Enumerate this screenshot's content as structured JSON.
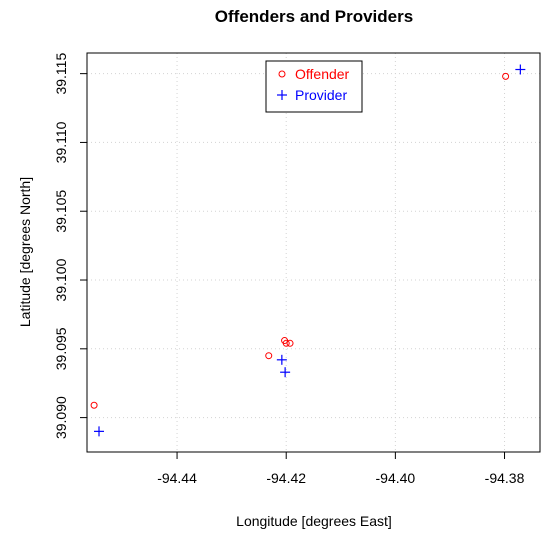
{
  "chart_data": {
    "type": "scatter",
    "title": "Offenders and Providers",
    "xlabel": "Longitude [degrees East]",
    "ylabel": "Latitude [degrees North]",
    "xlim": [
      -94.4565,
      -94.3735
    ],
    "ylim": [
      39.0875,
      39.1165
    ],
    "x_ticks": [
      -94.44,
      -94.42,
      -94.4,
      -94.38
    ],
    "x_tick_labels": [
      "-94.44",
      "-94.42",
      "-94.40",
      "-94.38"
    ],
    "y_ticks": [
      39.09,
      39.095,
      39.1,
      39.105,
      39.11,
      39.115
    ],
    "y_tick_labels": [
      "39.090",
      "39.095",
      "39.100",
      "39.105",
      "39.110",
      "39.115"
    ],
    "grid": true,
    "legend_position": "top-center",
    "series": [
      {
        "name": "Offender",
        "marker": "circle",
        "color": "#ff0000",
        "points": [
          [
            -94.4552,
            39.0909
          ],
          [
            -94.4232,
            39.0945
          ],
          [
            -94.4203,
            39.0956
          ],
          [
            -94.42,
            39.0954
          ],
          [
            -94.4193,
            39.0954
          ],
          [
            -94.3798,
            39.1148
          ]
        ]
      },
      {
        "name": "Provider",
        "marker": "plus",
        "color": "#0000ff",
        "points": [
          [
            -94.4543,
            39.089
          ],
          [
            -94.4208,
            39.0942
          ],
          [
            -94.4202,
            39.0933
          ],
          [
            -94.3771,
            39.1153
          ]
        ]
      }
    ]
  }
}
